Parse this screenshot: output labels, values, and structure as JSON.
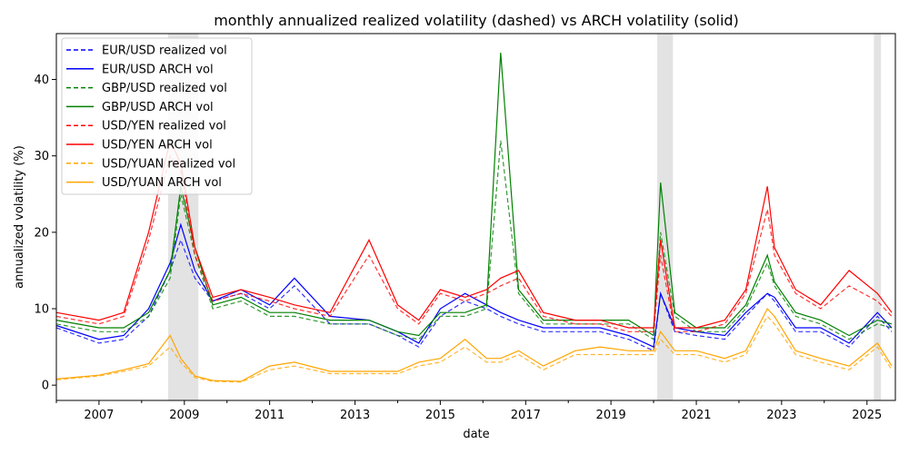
{
  "chart_data": {
    "type": "line",
    "title": "monthly annualized realized volatility (dashed) vs ARCH volatility (solid)",
    "xlabel": "date",
    "ylabel": "annualized volatility (%)",
    "xlim": [
      "2006-01-01",
      "2025-09-01"
    ],
    "ylim": [
      -2,
      46
    ],
    "x_ticks": [
      "2007",
      "2009",
      "2011",
      "2013",
      "2015",
      "2017",
      "2019",
      "2021",
      "2023",
      "2025"
    ],
    "y_ticks": [
      0,
      10,
      20,
      30,
      40
    ],
    "grid": false,
    "legend_position": "upper left",
    "shaded_periods": [
      {
        "start": "2008-08-15",
        "end": "2009-05-01"
      },
      {
        "start": "2020-02-01",
        "end": "2020-06-15"
      },
      {
        "start": "2025-03-01",
        "end": "2025-05-01"
      }
    ],
    "x": [
      "2006-01",
      "2007-01",
      "2007-08",
      "2008-03",
      "2008-09",
      "2008-12",
      "2009-04",
      "2009-09",
      "2010-05",
      "2011-01",
      "2011-08",
      "2012-06",
      "2013-05",
      "2014-01",
      "2014-07",
      "2015-01",
      "2015-08",
      "2016-02",
      "2016-06",
      "2016-11",
      "2017-06",
      "2018-03",
      "2018-10",
      "2019-06",
      "2020-01",
      "2020-03",
      "2020-07",
      "2021-01",
      "2021-09",
      "2022-03",
      "2022-09",
      "2022-11",
      "2023-05",
      "2023-12",
      "2024-08",
      "2025-04",
      "2025-08"
    ],
    "series": [
      {
        "name": "EUR/USD realized vol",
        "style": "dashed",
        "color": "#0000ff",
        "values": [
          7.5,
          5.5,
          6,
          9,
          15,
          19,
          14,
          11,
          12,
          10,
          13,
          8,
          8,
          6.5,
          5,
          9,
          11,
          10,
          9,
          8,
          7,
          7,
          7,
          6,
          4.5,
          12,
          7,
          6.5,
          6,
          9,
          12,
          11,
          7,
          7,
          5,
          9,
          7
        ]
      },
      {
        "name": "EUR/USD ARCH vol",
        "style": "solid",
        "color": "#0000ff",
        "values": [
          7.8,
          6,
          6.5,
          10,
          16,
          21,
          15,
          11,
          12.5,
          10.5,
          14,
          9,
          8.5,
          7,
          5.5,
          10,
          12,
          10.5,
          9.5,
          8.5,
          7.5,
          7.5,
          7.5,
          6.5,
          5,
          12,
          7.5,
          7,
          6.5,
          9.5,
          12,
          11.5,
          7.5,
          7.5,
          5.5,
          9.5,
          7.5
        ]
      },
      {
        "name": "GBP/USD realized vol",
        "style": "dashed",
        "color": "#008000",
        "values": [
          8,
          7,
          7,
          9,
          14,
          25,
          17,
          10,
          11,
          9,
          9,
          8,
          8,
          6.5,
          6,
          9,
          9,
          10,
          32,
          12,
          8,
          8,
          8,
          8,
          6,
          20,
          9,
          7,
          7,
          10,
          16,
          13,
          9,
          8,
          6,
          8,
          7.5
        ]
      },
      {
        "name": "GBP/USD ARCH vol",
        "style": "solid",
        "color": "#008000",
        "values": [
          8.5,
          7.5,
          7.5,
          9.5,
          15,
          26,
          18,
          10.5,
          11.5,
          9.5,
          9.5,
          8.5,
          8.5,
          7,
          6.5,
          9.5,
          9.5,
          10.5,
          43.5,
          12.5,
          8.5,
          8.5,
          8.5,
          8.5,
          6.5,
          26.5,
          9.5,
          7.5,
          7.5,
          10.5,
          17,
          13.5,
          9.5,
          8.5,
          6.5,
          8.5,
          8
        ]
      },
      {
        "name": "USD/YEN realized vol",
        "style": "dashed",
        "color": "#ff0000",
        "values": [
          9,
          8,
          9,
          19,
          30,
          28,
          17,
          11,
          12,
          11,
          10,
          9,
          17,
          10,
          8,
          12,
          11,
          12,
          13,
          14,
          9,
          8,
          8,
          7,
          7,
          17,
          7,
          7,
          8,
          12,
          23,
          17,
          12,
          10,
          13,
          11,
          9
        ]
      },
      {
        "name": "USD/YEN ARCH vol",
        "style": "solid",
        "color": "#ff0000",
        "values": [
          9.5,
          8.5,
          9.5,
          20,
          32,
          29,
          18,
          11.5,
          12.5,
          11.5,
          10.5,
          9.5,
          19,
          10.5,
          8.5,
          12.5,
          11.5,
          12.5,
          14,
          15,
          9.5,
          8.5,
          8.5,
          7.5,
          7.5,
          19,
          7.5,
          7.5,
          8.5,
          12.5,
          26,
          18,
          12.5,
          10.5,
          15,
          12,
          9.5
        ]
      },
      {
        "name": "USD/YUAN realized vol",
        "style": "dashed",
        "color": "#ffa500",
        "values": [
          0.7,
          1.2,
          1.8,
          2.5,
          5,
          3,
          1,
          0.5,
          0.4,
          2,
          2.5,
          1.5,
          1.5,
          1.5,
          2.5,
          3,
          5,
          3,
          3,
          4,
          2,
          4,
          4,
          4,
          4,
          6,
          4,
          4,
          3,
          4,
          9,
          8,
          4,
          3,
          2,
          5,
          2
        ]
      },
      {
        "name": "USD/YUAN ARCH vol",
        "style": "solid",
        "color": "#ffa500",
        "values": [
          0.8,
          1.3,
          2,
          2.8,
          6.5,
          3.5,
          1.2,
          0.6,
          0.5,
          2.5,
          3,
          1.8,
          1.8,
          1.8,
          3,
          3.5,
          6,
          3.5,
          3.5,
          4.5,
          2.5,
          4.5,
          5,
          4.5,
          4.5,
          7,
          4.5,
          4.5,
          3.5,
          4.5,
          10,
          9,
          4.5,
          3.5,
          2.5,
          5.5,
          2.5
        ]
      }
    ]
  }
}
